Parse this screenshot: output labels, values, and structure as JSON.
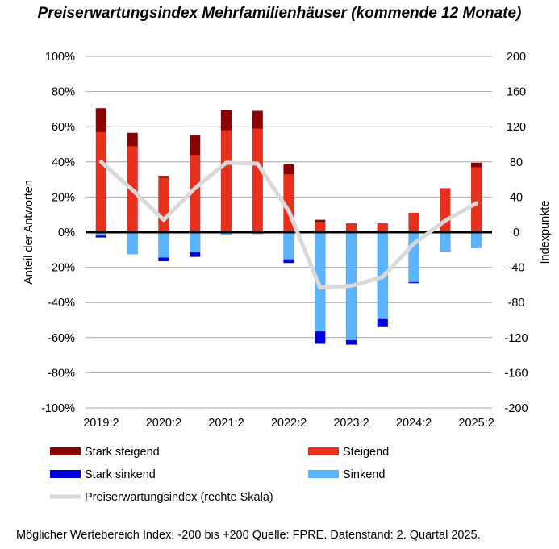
{
  "title": "Preiserwartungsindex Mehrfamilienhäuser (kommende 12 Monate)",
  "footnote": "Möglicher Wertebereich Index: -200 bis +200 Quelle: FPRE. Datenstand: 2. Quartal 2025.",
  "chart_data": {
    "type": "bar",
    "stacked": true,
    "categories": [
      "2019:2",
      "2019:4",
      "2020:2",
      "2020:4",
      "2021:2",
      "2021:4",
      "2022:2",
      "2022:4",
      "2023:2",
      "2023:4",
      "2024:2",
      "2024:4",
      "2025:2"
    ],
    "x_tick_labels": [
      "2019:2",
      "2020:2",
      "2021:2",
      "2022:2",
      "2023:2",
      "2024:2",
      "2025:2"
    ],
    "ylabel": "Anteil der Antworten",
    "y2label": "Indexpunkte",
    "ylim": [
      -100,
      100
    ],
    "y2lim": [
      -200,
      200
    ],
    "y_ticks": [
      "100%",
      "80%",
      "60%",
      "40%",
      "20%",
      "0%",
      "-20%",
      "-40%",
      "-60%",
      "-80%",
      "-100%"
    ],
    "y_ticks_values": [
      100,
      80,
      60,
      40,
      20,
      0,
      -20,
      -40,
      -60,
      -80,
      -100
    ],
    "y2_ticks": [
      "200",
      "160",
      "120",
      "80",
      "40",
      "0",
      "-40",
      "-80",
      "-120",
      "-160",
      "-200"
    ],
    "y2_ticks_values": [
      200,
      160,
      120,
      80,
      40,
      0,
      -40,
      -80,
      -120,
      -160,
      -200
    ],
    "grid": true,
    "legend_position": "bottom",
    "series": [
      {
        "name": "Steigend",
        "color": "#e8311c",
        "values": [
          57,
          49,
          31,
          44,
          58,
          59,
          33,
          6,
          5,
          5,
          11,
          25,
          37
        ]
      },
      {
        "name": "Stark steigend",
        "color": "#8b0000",
        "values": [
          13.5,
          7.5,
          1,
          11,
          11.5,
          10,
          5.5,
          1,
          0,
          0,
          0,
          0,
          2.5
        ]
      },
      {
        "name": "Sinkend",
        "color": "#5bb4ff",
        "values": [
          -2,
          -12.5,
          -14.5,
          -11.5,
          -1.5,
          -1,
          -15.5,
          -56.5,
          -61.5,
          -49.5,
          -28.5,
          -11,
          -9
        ]
      },
      {
        "name": "Stark sinkend",
        "color": "#0000dd",
        "values": [
          -1,
          0,
          -2,
          -2.5,
          0,
          0,
          -2,
          -7,
          -2.5,
          -4.5,
          -0.5,
          0,
          0
        ]
      },
      {
        "name": "Preiserwartungsindex (rechte Skala)",
        "type": "line",
        "axis": "right",
        "color": "#d9d9d9",
        "values": [
          80,
          48,
          14,
          50,
          79,
          78,
          24,
          -63,
          -61,
          -51,
          -13,
          13,
          33
        ]
      }
    ],
    "legend": [
      "Stark steigend",
      "Steigend",
      "Stark sinkend",
      "Sinkend",
      "Preiserwartungsindex (rechte Skala)"
    ]
  }
}
